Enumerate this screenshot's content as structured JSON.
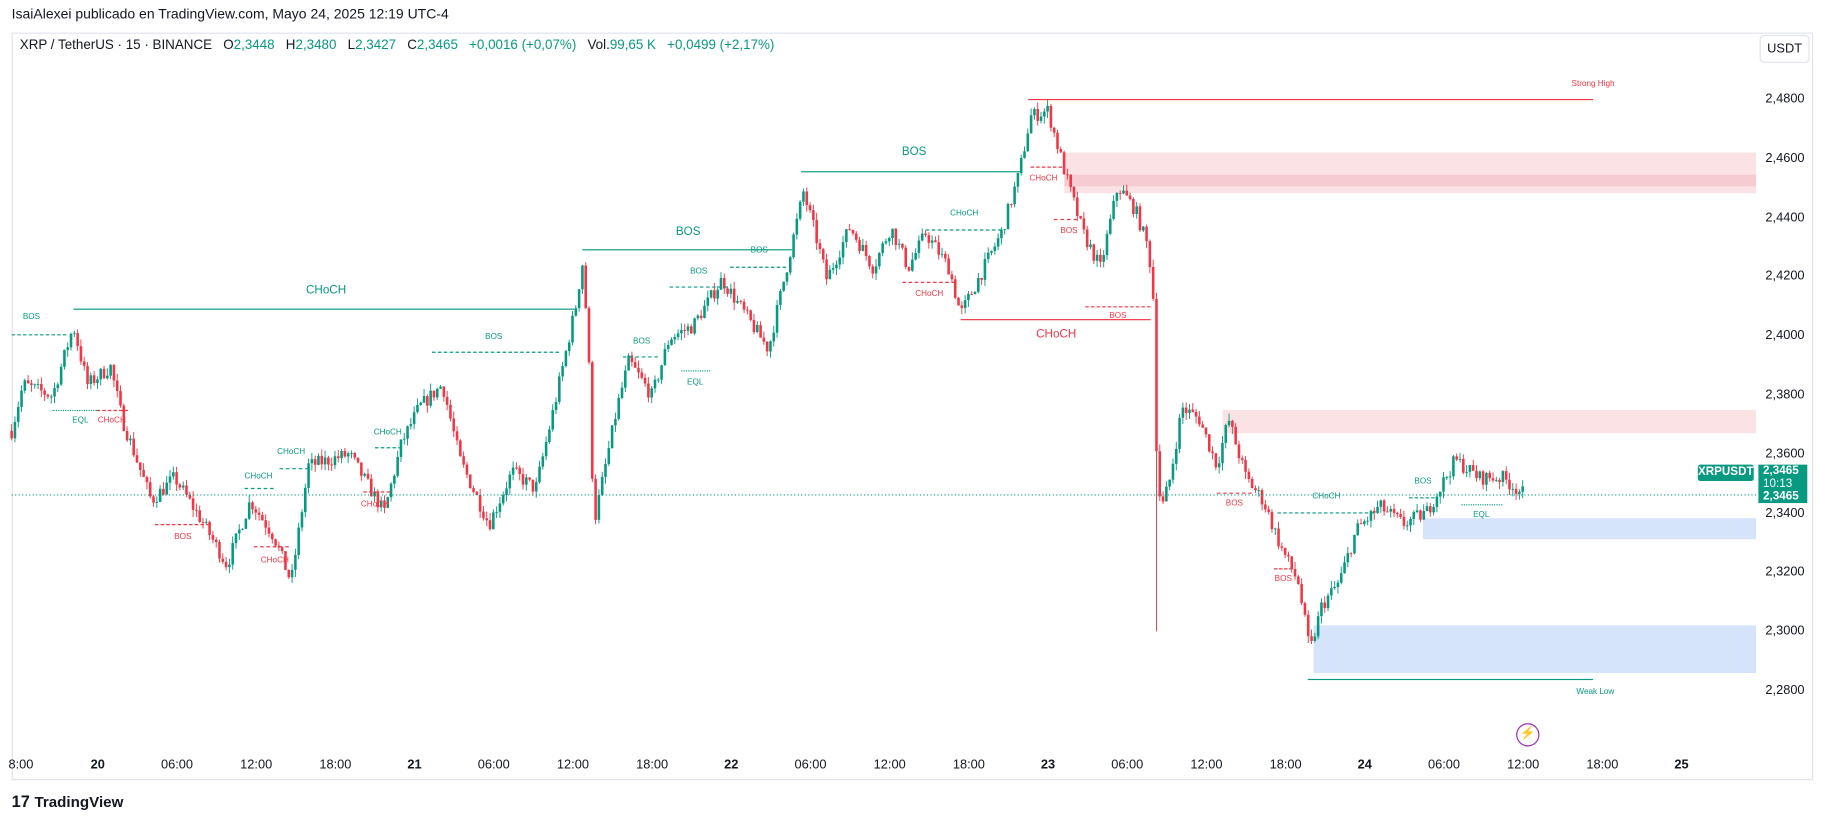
{
  "publisher": "IsaiAlexei publicado en TradingView.com, Mayo 24, 2025 12:19 UTC-4",
  "legend": {
    "symbol": "XRP / TetherUS · 15 · BINANCE",
    "o_label": "O",
    "o": "2,3448",
    "h_label": "H",
    "h": "2,3480",
    "l_label": "L",
    "l": "2,3427",
    "c_label": "C",
    "c": "2,3465",
    "change": "+0,0016 (+0,07%)",
    "vol_label": "Vol.",
    "vol": "99,65 K",
    "vol_change": "+0,0499 (+2,17%)"
  },
  "currency_button": "USDT",
  "price_axis": [
    "2,4800",
    "2,4600",
    "2,4400",
    "2,4200",
    "2,4000",
    "2,3800",
    "2,3600",
    "2,3400",
    "2,3200",
    "2,3000",
    "2,2800"
  ],
  "time_axis": [
    "8:00",
    "20",
    "06:00",
    "12:00",
    "18:00",
    "21",
    "06:00",
    "12:00",
    "18:00",
    "22",
    "06:00",
    "12:00",
    "18:00",
    "23",
    "06:00",
    "12:00",
    "18:00",
    "24",
    "06:00",
    "12:00",
    "18:00",
    "25"
  ],
  "last_price": {
    "symbol": "XRPUSDT",
    "price": "2,3465",
    "countdown": "10:13",
    "price2": "2,3465"
  },
  "colors": {
    "up": "#089981",
    "down": "#f23645",
    "supply": "#f9d7da",
    "demand": "#d6e4fb"
  },
  "annotations": {
    "strong_high": "Strong High",
    "weak_low": "Weak Low",
    "choch": "CHoCH",
    "bos": "BOS",
    "eql": "EQL"
  },
  "brand": "TradingView",
  "price_path_hours_from_20th": [
    [
      -6.53,
      2.3678
    ],
    [
      -5.65,
      2.3835
    ],
    [
      -3.44,
      2.3796
    ],
    [
      -1.85,
      2.4032
    ],
    [
      -0.79,
      2.3835
    ],
    [
      0.97,
      2.3894
    ],
    [
      1.85,
      2.3717
    ],
    [
      4.06,
      2.3442
    ],
    [
      5.82,
      2.352
    ],
    [
      8.03,
      2.3363
    ],
    [
      9.79,
      2.3225
    ],
    [
      11.56,
      2.3442
    ],
    [
      13.32,
      2.3324
    ],
    [
      14.65,
      2.3166
    ],
    [
      15.97,
      2.356
    ],
    [
      19.06,
      2.3599
    ],
    [
      21.71,
      2.3402
    ],
    [
      23.03,
      2.3639
    ],
    [
      24.35,
      2.3757
    ],
    [
      26.12,
      2.3835
    ],
    [
      27.44,
      2.358
    ],
    [
      29.65,
      2.3363
    ],
    [
      31.41,
      2.354
    ],
    [
      33.18,
      2.3481
    ],
    [
      34.76,
      2.3796
    ],
    [
      36.27,
      2.4111
    ],
    [
      36.71,
      2.4249
    ],
    [
      37.15,
      2.3993
    ],
    [
      37.59,
      2.3363
    ],
    [
      38.47,
      2.356
    ],
    [
      39.35,
      2.3757
    ],
    [
      40.24,
      2.3914
    ],
    [
      42.0,
      2.3796
    ],
    [
      43.32,
      2.3993
    ],
    [
      45.09,
      2.4032
    ],
    [
      47.3,
      2.419
    ],
    [
      49.06,
      2.4072
    ],
    [
      50.82,
      2.3954
    ],
    [
      52.59,
      2.4308
    ],
    [
      53.47,
      2.4485
    ],
    [
      54.35,
      2.4347
    ],
    [
      55.24,
      2.419
    ],
    [
      57.0,
      2.4367
    ],
    [
      58.77,
      2.4229
    ],
    [
      60.09,
      2.4367
    ],
    [
      61.41,
      2.4229
    ],
    [
      62.74,
      2.4347
    ],
    [
      64.5,
      2.4229
    ],
    [
      65.38,
      2.4072
    ],
    [
      66.71,
      2.419
    ],
    [
      68.47,
      2.4347
    ],
    [
      69.8,
      2.4544
    ],
    [
      70.68,
      2.4741
    ],
    [
      72.0,
      2.4761
    ],
    [
      73.33,
      2.4544
    ],
    [
      74.65,
      2.4347
    ],
    [
      75.97,
      2.4229
    ],
    [
      77.3,
      2.4505
    ],
    [
      78.62,
      2.4426
    ],
    [
      79.5,
      2.4308
    ],
    [
      79.94,
      2.419
    ],
    [
      80.21,
      2.3639
    ],
    [
      80.56,
      2.3402
    ],
    [
      81.27,
      2.352
    ],
    [
      82.15,
      2.3757
    ],
    [
      83.47,
      2.3717
    ],
    [
      84.8,
      2.356
    ],
    [
      85.68,
      2.3717
    ],
    [
      87.0,
      2.352
    ],
    [
      88.32,
      2.3442
    ],
    [
      89.65,
      2.3284
    ],
    [
      90.97,
      2.3166
    ],
    [
      91.85,
      2.293
    ],
    [
      92.74,
      2.3087
    ],
    [
      94.06,
      2.3166
    ],
    [
      95.38,
      2.3343
    ],
    [
      97.15,
      2.3422
    ],
    [
      98.91,
      2.3363
    ],
    [
      100.68,
      2.3402
    ],
    [
      102.88,
      2.358
    ],
    [
      104.65,
      2.352
    ],
    [
      106.41,
      2.352
    ],
    [
      108.18,
      2.3461
    ]
  ]
}
